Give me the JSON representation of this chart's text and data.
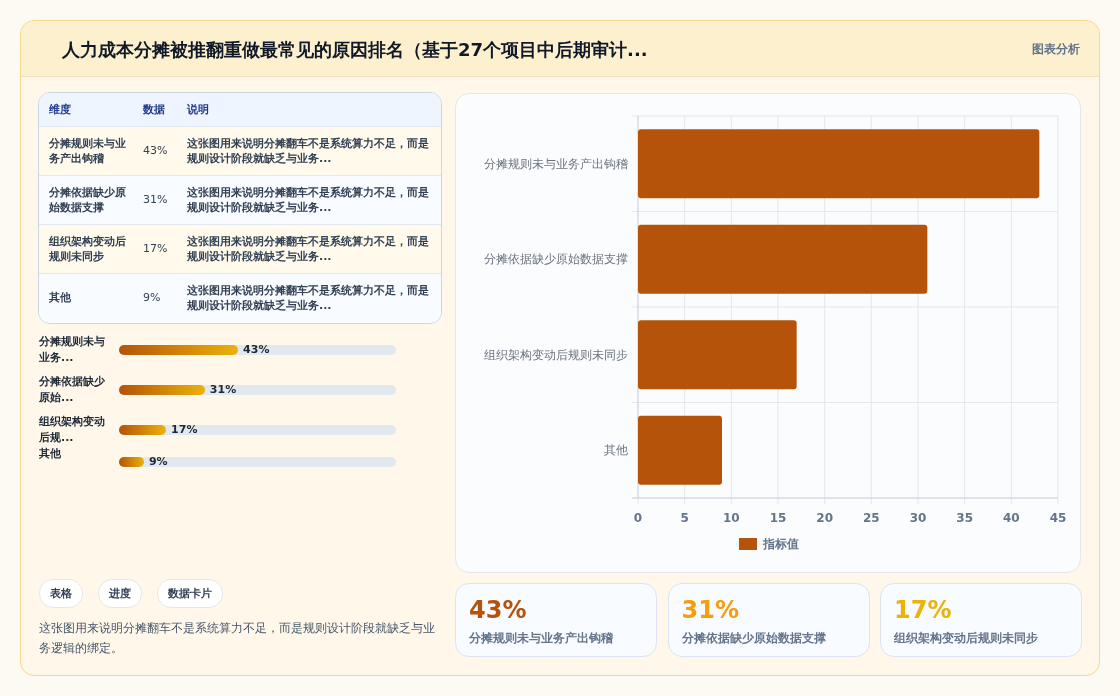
{
  "chart_data": [
    {
      "type": "other",
      "title": "人力成本分摊被推翻重做最常见的原因排名（基于27个项目中后期审计...",
      "subtitle": "图表分析",
      "categories": [
        "分摊规则未与业务产出钩稽",
        "分摊依据缺少原始数据支撑",
        "组织架构变动后规则未同步",
        "其他"
      ],
      "value_labels": [
        "43%",
        "31%",
        "17%",
        "9%"
      ],
      "annotations": [
        "维度",
        "数据",
        "说明",
        "这张图用来说明分摊翻车不是系统算力不足，而是规则设计阶段就缺乏与业务...",
        "这张图用来说明分摊翻车不是系统算力不足，而是规则设计阶段就缺乏与业务...",
        "这张图用来说明分摊翻车不是系统算力不足，而是规则设计阶段就缺乏与业务...",
        "这张图用来说明分摊翻车不是系统算力不足，而是规则设计阶段就缺乏与业务..."
      ]
    },
    {
      "type": "bar",
      "orientation": "horizontal",
      "categories": [
        "分摊规则未与业务...",
        "分摊依据缺少原始...",
        "组织架构变动后规...",
        "其他"
      ],
      "values": [
        43,
        31,
        17,
        9
      ],
      "value_labels": [
        "43%",
        "31%",
        "17%",
        "9%"
      ],
      "xlim": [
        0,
        100
      ],
      "color": "#b45309",
      "annotations": [
        "表格",
        "进度",
        "数据卡片",
        "这张图用来说明分摊翻车不是系统算力不足，而是规则设计阶段就缺乏与业务逻辑的绑定。"
      ]
    },
    {
      "type": "bar",
      "orientation": "horizontal",
      "categories": [
        "分摊规则未与业务产出钩稽",
        "分摊依据缺少原始数据支撑",
        "组织架构变动后规则未同步",
        "其他"
      ],
      "series": [
        {
          "name": "指标值",
          "color": "#b45309",
          "values": [
            43,
            31,
            17,
            9
          ]
        }
      ],
      "xlim": [
        0,
        45
      ],
      "xticks": [
        0,
        5,
        10,
        15,
        20,
        25,
        30,
        35,
        40,
        45
      ],
      "grid": true,
      "legend": "bottom"
    },
    {
      "type": "other",
      "categories": [
        "分摊规则未与业务产出钩稽",
        "分摊依据缺少原始数据支撑",
        "组织架构变动后规则未同步"
      ],
      "value_labels": [
        "43%",
        "31%",
        "17%"
      ],
      "colors": [
        "#b45309",
        "#f59e0b",
        "#eab308"
      ]
    }
  ]
}
